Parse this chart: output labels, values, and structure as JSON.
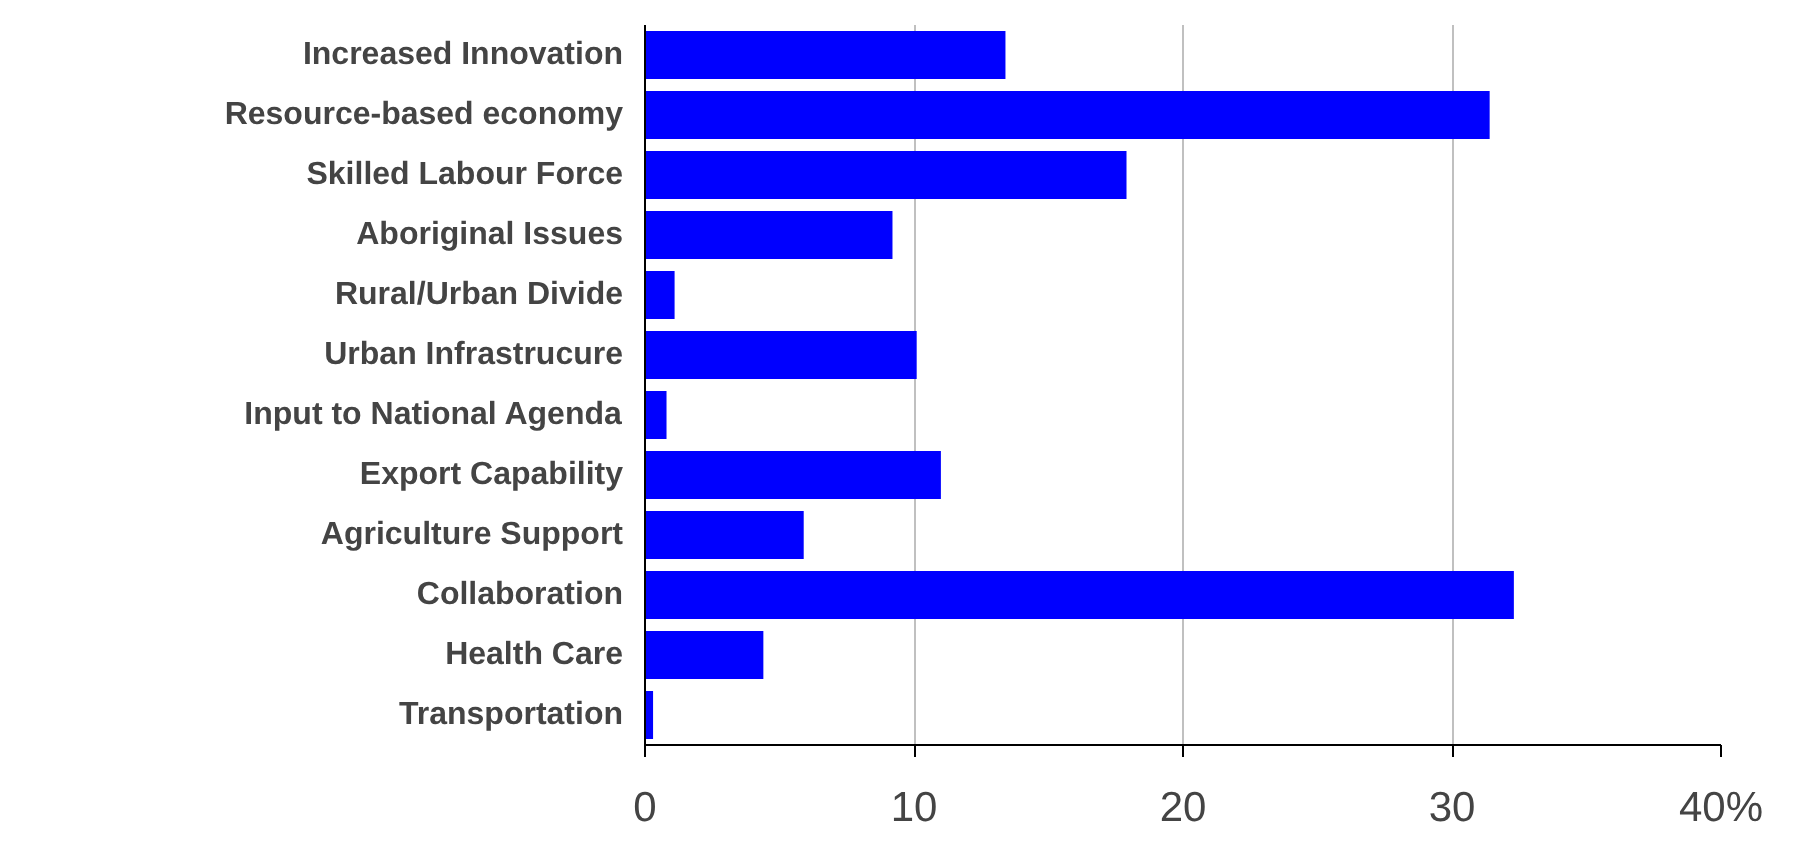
{
  "chart_data": {
    "type": "bar",
    "orientation": "horizontal",
    "categories": [
      "Increased Innovation",
      "Resource-based economy",
      "Skilled Labour Force",
      "Aboriginal Issues",
      "Rural/Urban Divide",
      "Urban Infrastrucure",
      "Input to National Agenda",
      "Export Capability",
      "Agriculture Support",
      "Collaboration",
      "Health Care",
      "Transportation"
    ],
    "values": [
      13.4,
      31.4,
      17.9,
      9.2,
      1.1,
      10.1,
      0.8,
      11.0,
      5.9,
      32.3,
      4.4,
      0.3
    ],
    "color": "#0000ff",
    "xlim": [
      0,
      40
    ],
    "xticks": [
      0,
      10,
      20,
      30,
      {
        "value": 40,
        "label": "40%"
      }
    ],
    "grid": "x"
  }
}
